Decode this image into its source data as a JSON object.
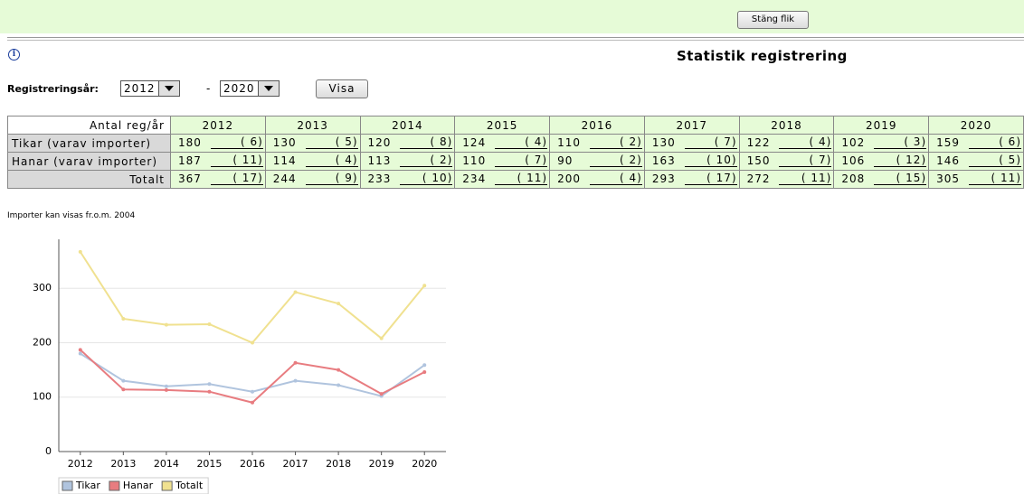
{
  "toolbar": {
    "close_button": "Stäng flik"
  },
  "header": {
    "title": "Statistik registrering"
  },
  "form": {
    "label": "Registreringsår:",
    "from": "2012",
    "separator": "-",
    "to": "2020",
    "button": "Visa"
  },
  "table": {
    "header": "Antal reg/år",
    "columns": [
      "2012",
      "2013",
      "2014",
      "2015",
      "2016",
      "2017",
      "2018",
      "2019",
      "2020"
    ],
    "rows": [
      {
        "label": "Tikar (varav importer)",
        "values": [
          180,
          130,
          120,
          124,
          110,
          130,
          122,
          102,
          159
        ],
        "imports": [
          "( 6)",
          "( 5)",
          "( 8)",
          "( 4)",
          "( 2)",
          "( 7)",
          "( 4)",
          "( 3)",
          "( 6)"
        ]
      },
      {
        "label": "Hanar (varav importer)",
        "values": [
          187,
          114,
          113,
          110,
          90,
          163,
          150,
          106,
          146
        ],
        "imports": [
          "( 11)",
          "( 4)",
          "( 2)",
          "( 7)",
          "( 2)",
          "( 10)",
          "( 7)",
          "( 12)",
          "( 5)"
        ]
      },
      {
        "label": "Totalt",
        "values": [
          367,
          244,
          233,
          234,
          200,
          293,
          272,
          208,
          305
        ],
        "imports": [
          "( 17)",
          "( 9)",
          "( 10)",
          "( 11)",
          "( 4)",
          "( 17)",
          "( 11)",
          "( 15)",
          "( 11)"
        ]
      }
    ]
  },
  "note": "Importer kan visas fr.o.m. 2004",
  "chart_data": {
    "type": "line",
    "categories": [
      "2012",
      "2013",
      "2014",
      "2015",
      "2016",
      "2017",
      "2018",
      "2019",
      "2020"
    ],
    "series": [
      {
        "name": "Tikar",
        "color": "#b0c4de",
        "values": [
          180,
          130,
          120,
          124,
          110,
          130,
          122,
          102,
          159
        ]
      },
      {
        "name": "Hanar",
        "color": "#e87c80",
        "values": [
          187,
          114,
          113,
          110,
          90,
          163,
          150,
          106,
          146
        ]
      },
      {
        "name": "Totalt",
        "color": "#f0e190",
        "values": [
          367,
          244,
          233,
          234,
          200,
          293,
          272,
          208,
          305
        ]
      }
    ],
    "ylim": [
      0,
      390
    ],
    "yticks": [
      0,
      100,
      200,
      300
    ],
    "grid": true,
    "legend": "bottom"
  }
}
